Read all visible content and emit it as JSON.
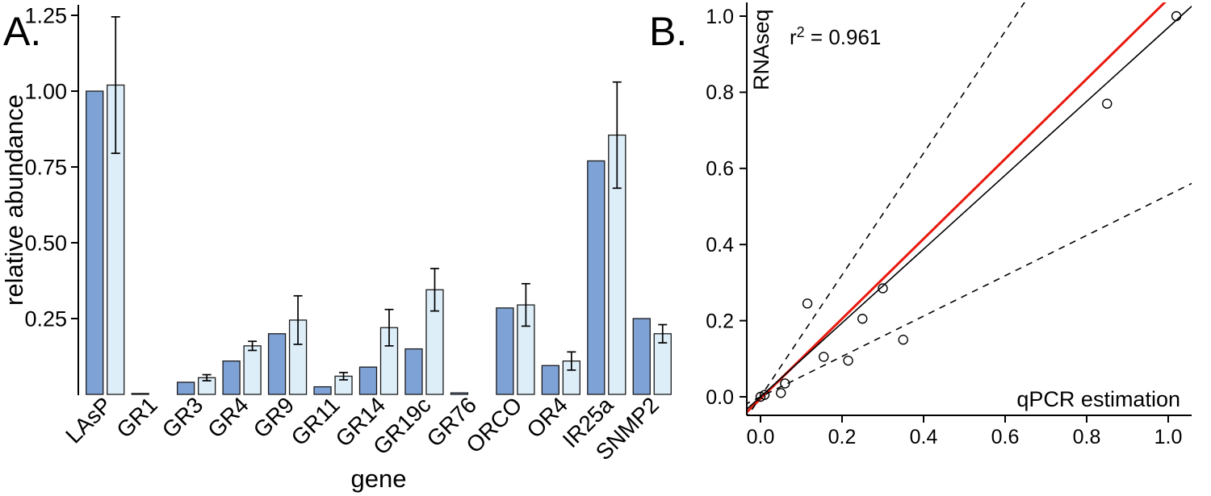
{
  "figure": {
    "panel_a_label": "A.",
    "panel_b_label": "B."
  },
  "colors": {
    "background": "#ffffff",
    "axis": "#000000",
    "bar_outline": "#1a1a1a",
    "error_bar": "#000000",
    "point_stroke": "#000000"
  },
  "chart_data": [
    {
      "type": "bar",
      "panel": "A",
      "title": "",
      "xlabel": "gene",
      "ylabel": "relative abundance",
      "ylim": [
        0,
        1.25
      ],
      "yticks": [
        0.25,
        0.5,
        0.75,
        1.0,
        1.25
      ],
      "ytick_labels": [
        "0.25",
        "0.50",
        "0.75",
        "1.00",
        "1.25"
      ],
      "grid": false,
      "legend": false,
      "categories": [
        "LAsP",
        "GR1",
        "GR3",
        "GR4",
        "GR9",
        "GR11",
        "GR14",
        "GR19c",
        "GR76",
        "ORCO",
        "OR4",
        "IR25a",
        "SNMP2"
      ],
      "series": [
        {
          "name": "dark-blue",
          "color": "#7FA2D6",
          "values": [
            1.0,
            0.003,
            0.04,
            0.11,
            0.2,
            0.025,
            0.09,
            0.15,
            0.005,
            0.285,
            0.095,
            0.77,
            0.25
          ],
          "errors": [
            0,
            0,
            0,
            0,
            0,
            0,
            0,
            0,
            0,
            0,
            0,
            0,
            0
          ]
        },
        {
          "name": "light-blue",
          "color": "#DDEEF9",
          "values": [
            1.02,
            0,
            0.055,
            0.16,
            0.245,
            0.06,
            0.22,
            0.345,
            0,
            0.295,
            0.11,
            0.855,
            0.2
          ],
          "errors": [
            0.225,
            0,
            0.01,
            0.015,
            0.08,
            0.012,
            0.06,
            0.07,
            0,
            0.07,
            0.03,
            0.175,
            0.03
          ]
        }
      ]
    },
    {
      "type": "scatter",
      "panel": "B",
      "title": "",
      "xlabel": "qPCR estimation",
      "ylabel": "RNAseq",
      "annotation": {
        "base": "r",
        "sup": "2",
        "rest": " = 0.961"
      },
      "r_squared": 0.961,
      "xlim": [
        0,
        1.0
      ],
      "ylim": [
        0,
        1.0
      ],
      "xticks": [
        0,
        0.2,
        0.4,
        0.6,
        0.8,
        1.0
      ],
      "xtick_labels": [
        "0.0",
        "0.2",
        "0.4",
        "0.6",
        "0.8",
        "1.0"
      ],
      "yticks": [
        0,
        0.2,
        0.4,
        0.6,
        0.8,
        1.0
      ],
      "ytick_labels": [
        "0.0",
        "0.2",
        "0.4",
        "0.6",
        "0.8",
        "1.0"
      ],
      "grid": false,
      "points": [
        [
          0.0,
          0.0
        ],
        [
          0.01,
          0.005
        ],
        [
          0.05,
          0.01
        ],
        [
          0.06,
          0.035
        ],
        [
          0.115,
          0.245
        ],
        [
          0.155,
          0.105
        ],
        [
          0.215,
          0.095
        ],
        [
          0.25,
          0.205
        ],
        [
          0.3,
          0.285
        ],
        [
          0.35,
          0.15
        ],
        [
          0.85,
          0.77
        ],
        [
          1.02,
          1.0
        ]
      ],
      "lines": [
        {
          "name": "identity-line-red",
          "color": "#E8190F",
          "style": "solid",
          "slope": 1.05,
          "intercept": -0.005,
          "width": 3
        },
        {
          "name": "regression-line",
          "color": "#000000",
          "style": "solid",
          "slope": 0.97,
          "intercept": 0,
          "width": 1.6
        },
        {
          "name": "upper-confidence-line",
          "color": "#000000",
          "style": "dashed",
          "slope": 1.6,
          "intercept": 0,
          "width": 1.6
        },
        {
          "name": "lower-confidence-line",
          "color": "#000000",
          "style": "dashed",
          "slope": 0.53,
          "intercept": 0,
          "width": 1.6
        }
      ]
    }
  ]
}
